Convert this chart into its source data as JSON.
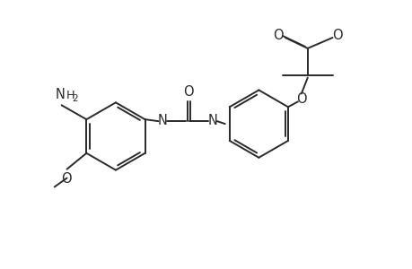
{
  "bg_color": "#ffffff",
  "line_color": "#2a2a2a",
  "line_width": 1.4,
  "font_size": 10.5,
  "figsize": [
    4.6,
    3.0
  ],
  "dpi": 100,
  "xlim": [
    0,
    460
  ],
  "ylim": [
    0,
    300
  ]
}
